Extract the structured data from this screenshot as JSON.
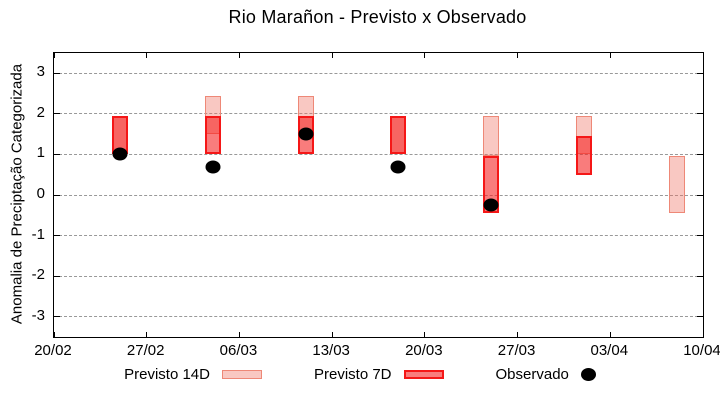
{
  "page": {
    "title": "Rio Marañon - Previsto x Observado"
  },
  "chart_data": {
    "type": "bar",
    "subtype": "forecast-range-bars-with-observed-points",
    "title": "Rio Marañon - Previsto x Observado",
    "xlabel": "",
    "ylabel": "Anomalia de Preciptação Categorizada",
    "ylim": [
      -3.5,
      3.5
    ],
    "yticks": [
      3,
      2,
      1,
      0,
      -1,
      -2,
      -3
    ],
    "x_axis": {
      "start_label": "20/02",
      "end_label": "10/04",
      "span_days": 49,
      "tick_days": [
        0,
        7,
        14,
        21,
        28,
        35,
        42,
        49
      ],
      "tick_labels": [
        "20/02",
        "27/02",
        "06/03",
        "13/03",
        "20/03",
        "27/03",
        "03/04",
        "10/04"
      ]
    },
    "grid": {
      "horizontal": true,
      "vertical": false,
      "style": "dashed",
      "color": "#999999"
    },
    "colors": {
      "previsto_14d_fill": "rgba(238,110,95,0.38)",
      "previsto_14d_border": "#ee8877",
      "previsto_7d_fill": "rgba(245,30,30,0.58)",
      "previsto_7d_border": "#f51717",
      "observado": "#000000"
    },
    "series": [
      {
        "name": "Previsto 14D",
        "kind": "range",
        "fill": "rgba(238,110,95,0.38)",
        "border": "#ee8877",
        "points": [
          {
            "date": "25/02",
            "day": 5,
            "low": 1.0,
            "high": 1.95
          },
          {
            "date": "04/03",
            "day": 12,
            "low": 1.5,
            "high": 2.45
          },
          {
            "date": "11/03",
            "day": 19,
            "low": 1.5,
            "high": 2.45
          },
          {
            "date": "18/03",
            "day": 26,
            "low": 1.0,
            "high": 1.95
          },
          {
            "date": "25/03",
            "day": 33,
            "low": 0.95,
            "high": 1.95
          },
          {
            "date": "01/04",
            "day": 40,
            "low": 1.0,
            "high": 1.95
          },
          {
            "date": "08/04",
            "day": 47,
            "low": -0.45,
            "high": 0.95
          }
        ]
      },
      {
        "name": "Previsto 7D",
        "kind": "range",
        "fill": "rgba(245,30,30,0.58)",
        "border": "#f51717",
        "points": [
          {
            "date": "25/02",
            "day": 5,
            "low": 1.0,
            "high": 1.95
          },
          {
            "date": "04/03",
            "day": 12,
            "low": 1.0,
            "high": 1.95
          },
          {
            "date": "11/03",
            "day": 19,
            "low": 1.0,
            "high": 1.95
          },
          {
            "date": "18/03",
            "day": 26,
            "low": 1.0,
            "high": 1.95
          },
          {
            "date": "25/03",
            "day": 33,
            "low": -0.45,
            "high": 0.95
          },
          {
            "date": "01/04",
            "day": 40,
            "low": 0.5,
            "high": 1.45
          }
        ]
      },
      {
        "name": "Observado",
        "kind": "scatter",
        "color": "#000000",
        "points": [
          {
            "date": "25/02",
            "day": 5,
            "value": 1.0
          },
          {
            "date": "04/03",
            "day": 12,
            "value": 0.7
          },
          {
            "date": "11/03",
            "day": 19,
            "value": 1.5
          },
          {
            "date": "18/03",
            "day": 26,
            "value": 0.7
          },
          {
            "date": "25/03",
            "day": 33,
            "value": -0.25
          }
        ]
      }
    ],
    "legend": {
      "position": "bottom",
      "items": [
        {
          "label": "Previsto 14D"
        },
        {
          "label": "Previsto 7D"
        },
        {
          "label": "Observado"
        }
      ]
    }
  }
}
